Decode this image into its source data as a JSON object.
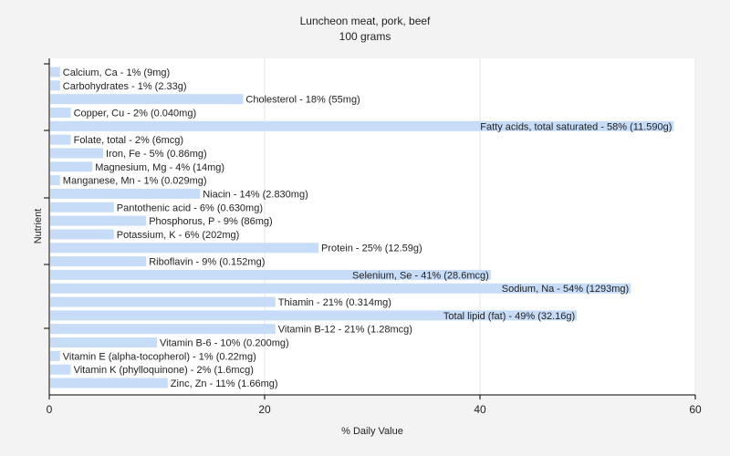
{
  "chart_data": {
    "type": "bar",
    "orientation": "horizontal",
    "title": "Luncheon meat, pork, beef",
    "subtitle": "100 grams",
    "xlabel": "% Daily Value",
    "ylabel": "Nutrient",
    "xlim": [
      0,
      60
    ],
    "xticks": [
      0,
      20,
      40,
      60
    ],
    "grid": true,
    "colors": {
      "bar": "#c6dcf7",
      "background": "#f3f3f3",
      "plot_background": "#ffffff",
      "grid": "#e4e4e4",
      "axis": "#000000"
    },
    "bars": [
      {
        "nutrient": "Calcium, Ca",
        "value": 1,
        "label": "Calcium, Ca - 1% (9mg)"
      },
      {
        "nutrient": "Carbohydrates",
        "value": 1,
        "label": "Carbohydrates - 1% (2.33g)"
      },
      {
        "nutrient": "Cholesterol",
        "value": 18,
        "label": "Cholesterol - 18% (55mg)"
      },
      {
        "nutrient": "Copper, Cu",
        "value": 2,
        "label": "Copper, Cu - 2% (0.040mg)"
      },
      {
        "nutrient": "Fatty acids, total saturated",
        "value": 58,
        "label": "Fatty acids, total saturated - 58% (11.590g)"
      },
      {
        "nutrient": "Folate, total",
        "value": 2,
        "label": "Folate, total - 2% (6mcg)"
      },
      {
        "nutrient": "Iron, Fe",
        "value": 5,
        "label": "Iron, Fe - 5% (0.86mg)"
      },
      {
        "nutrient": "Magnesium, Mg",
        "value": 4,
        "label": "Magnesium, Mg - 4% (14mg)"
      },
      {
        "nutrient": "Manganese, Mn",
        "value": 1,
        "label": "Manganese, Mn - 1% (0.029mg)"
      },
      {
        "nutrient": "Niacin",
        "value": 14,
        "label": "Niacin - 14% (2.830mg)"
      },
      {
        "nutrient": "Pantothenic acid",
        "value": 6,
        "label": "Pantothenic acid - 6% (0.630mg)"
      },
      {
        "nutrient": "Phosphorus, P",
        "value": 9,
        "label": "Phosphorus, P - 9% (86mg)"
      },
      {
        "nutrient": "Potassium, K",
        "value": 6,
        "label": "Potassium, K - 6% (202mg)"
      },
      {
        "nutrient": "Protein",
        "value": 25,
        "label": "Protein - 25% (12.59g)"
      },
      {
        "nutrient": "Riboflavin",
        "value": 9,
        "label": "Riboflavin - 9% (0.152mg)"
      },
      {
        "nutrient": "Selenium, Se",
        "value": 41,
        "label": "Selenium, Se - 41% (28.6mcg)"
      },
      {
        "nutrient": "Sodium, Na",
        "value": 54,
        "label": "Sodium, Na - 54% (1293mg)"
      },
      {
        "nutrient": "Thiamin",
        "value": 21,
        "label": "Thiamin - 21% (0.314mg)"
      },
      {
        "nutrient": "Total lipid (fat)",
        "value": 49,
        "label": "Total lipid (fat) - 49% (32.16g)"
      },
      {
        "nutrient": "Vitamin B-12",
        "value": 21,
        "label": "Vitamin B-12 - 21% (1.28mcg)"
      },
      {
        "nutrient": "Vitamin B-6",
        "value": 10,
        "label": "Vitamin B-6 - 10% (0.200mg)"
      },
      {
        "nutrient": "Vitamin E (alpha-tocopherol)",
        "value": 1,
        "label": "Vitamin E (alpha-tocopherol) - 1% (0.22mg)"
      },
      {
        "nutrient": "Vitamin K (phylloquinone)",
        "value": 2,
        "label": "Vitamin K (phylloquinone) - 2% (1.6mcg)"
      },
      {
        "nutrient": "Zinc, Zn",
        "value": 11,
        "label": "Zinc, Zn - 11% (1.66mg)"
      }
    ]
  }
}
